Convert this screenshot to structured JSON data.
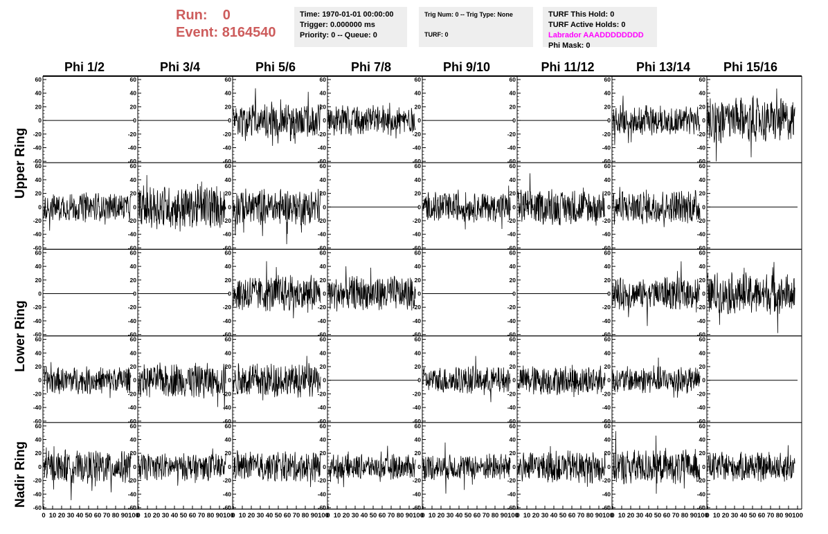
{
  "header": {
    "run_label": "Run:",
    "run_value": "0",
    "event_label": "Event:",
    "event_value": "8164540"
  },
  "info_time": {
    "time": "Time: 1970-01-01 00:00:00",
    "trigger": "Trigger: 0.000000 ms",
    "priority": "Priority: 0 -- Queue: 0"
  },
  "info_trig": {
    "trig": "Trig Num: 0 -- Trig Type: None",
    "turf": "TURF: 0"
  },
  "info_turf": {
    "this_hold": "TURF This Hold: 0",
    "active_holds": "TURF Active Holds: 0",
    "labrador": "Labrador AAADDDDDDDD",
    "phi_mask": "Phi Mask: 0"
  },
  "colors": {
    "header_red": "#cd5c5c",
    "labrador_magenta": "#ff00ff",
    "trace": "#000000",
    "info_bg": "#eeeeee"
  },
  "phi_titles": [
    "Phi 1/2",
    "Phi 3/4",
    "Phi 5/6",
    "Phi 7/8",
    "Phi 9/10",
    "Phi 11/12",
    "Phi 13/14",
    "Phi 15/16"
  ],
  "ring_labels": [
    "Upper Ring",
    "Lower Ring",
    "Nadir Ring"
  ],
  "chart_data": {
    "type": "line",
    "xlim": [
      0,
      100
    ],
    "ylim": [
      -60,
      60
    ],
    "x_ticks": [
      "0",
      "10",
      "20",
      "30",
      "40",
      "50",
      "60",
      "70",
      "80",
      "90",
      "100"
    ],
    "y_ticks": [
      "60",
      "40",
      "20",
      "0",
      "-20",
      "-40",
      "-60"
    ],
    "rows": 5,
    "cols": 8,
    "panel_amplitude": [
      [
        0,
        0,
        15,
        12,
        0,
        0,
        12,
        18
      ],
      [
        12,
        18,
        15,
        0,
        12,
        14,
        14,
        0
      ],
      [
        0,
        0,
        15,
        14,
        0,
        0,
        13,
        17
      ],
      [
        11,
        14,
        14,
        0,
        11,
        12,
        11,
        0
      ],
      [
        13,
        11,
        12,
        10,
        11,
        13,
        14,
        12
      ]
    ],
    "grid": false
  }
}
